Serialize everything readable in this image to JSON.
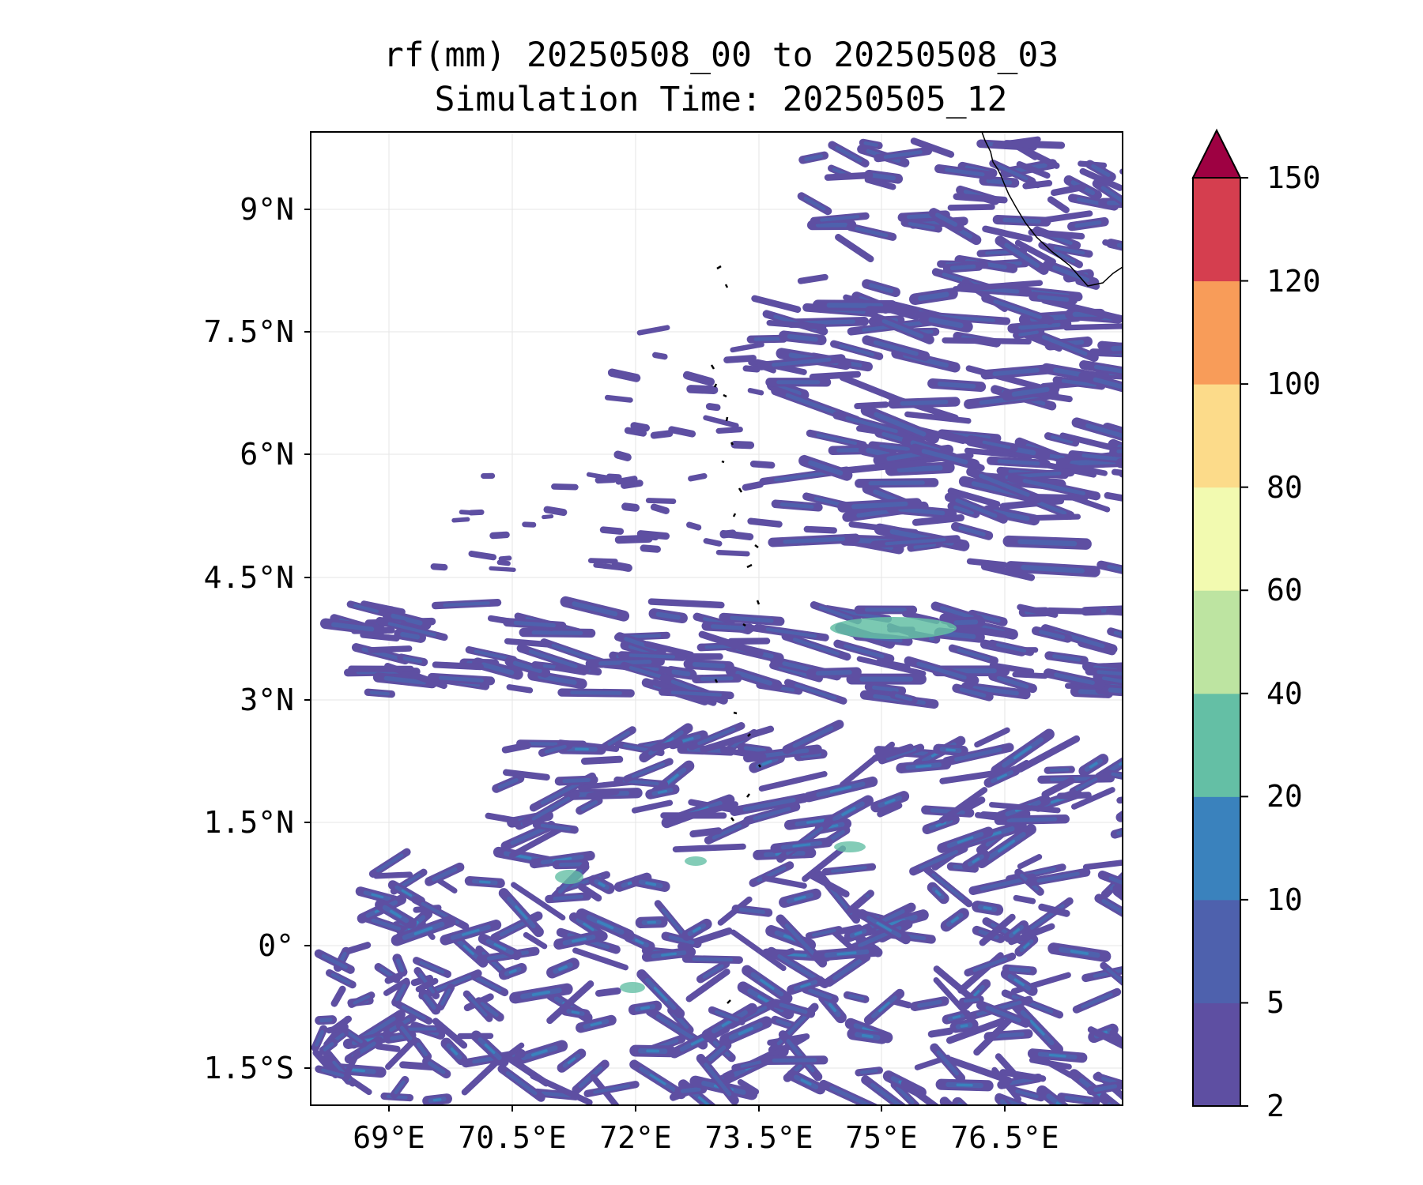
{
  "title": {
    "line1": "rf(mm) 20250508_00 to 20250508_03",
    "line2": "Simulation Time: 20250505_12"
  },
  "map": {
    "lat_labels": [
      "9°N",
      "7.5°N",
      "6°N",
      "4.5°N",
      "3°N",
      "1.5°N",
      "0°",
      "1.5°S"
    ],
    "lon_labels": [
      "69°E",
      "70.5°E",
      "72°E",
      "73.5°E",
      "75°E",
      "76.5°E"
    ],
    "field": "rf(mm)",
    "dominant_bins": [
      "2–5",
      "5–10",
      "10–20",
      "20–40"
    ]
  },
  "colorbar": {
    "levels": [
      "2",
      "5",
      "10",
      "20",
      "40",
      "60",
      "80",
      "100",
      "120",
      "150"
    ],
    "colors": [
      "#5e4fa2",
      "#4e61ad",
      "#3a82bd",
      "#64bfa5",
      "#bde4a1",
      "#f2fab0",
      "#fcdb8a",
      "#f89c59",
      "#d53e4f",
      "#9e0142"
    ],
    "extend": "max"
  }
}
